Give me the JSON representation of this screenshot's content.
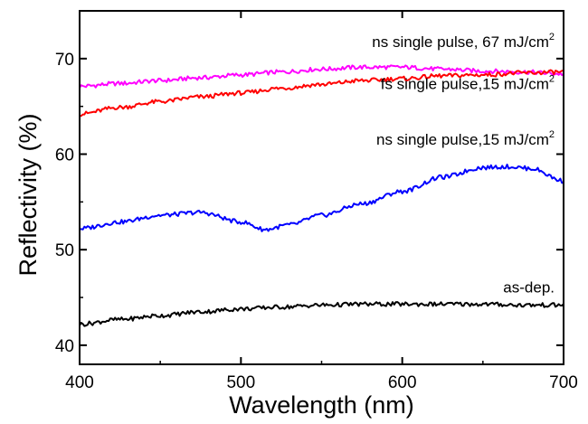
{
  "chart_data": {
    "type": "line",
    "xlabel": "Wavelength (nm)",
    "ylabel": "Reflectivity (%)",
    "xlim": [
      400,
      700
    ],
    "ylim": [
      38,
      75
    ],
    "xticks": [
      400,
      500,
      600,
      700
    ],
    "yticks": [
      40,
      50,
      60,
      70
    ],
    "grid": false,
    "series": [
      {
        "name": "ns single pulse, 67 mJ/cm2",
        "label_main": "ns single pulse, 67 mJ/cm",
        "label_sup": "2",
        "color": "#ff00ff",
        "x": [
          400,
          425,
          450,
          475,
          500,
          525,
          550,
          575,
          600,
          625,
          650,
          675,
          700
        ],
        "y": [
          67.1,
          67.4,
          67.7,
          68.0,
          68.3,
          68.6,
          68.9,
          69.1,
          69.1,
          68.9,
          68.7,
          68.6,
          68.4
        ]
      },
      {
        "name": "fs single pulse,15 mJ/cm2",
        "label_main": "fs single pulse,15 mJ/cm",
        "label_sup": "2",
        "color": "#ff0000",
        "x": [
          400,
          425,
          450,
          475,
          500,
          525,
          550,
          575,
          600,
          625,
          650,
          675,
          700
        ],
        "y": [
          64.2,
          64.9,
          65.5,
          66.0,
          66.4,
          66.9,
          67.3,
          67.7,
          67.9,
          68.2,
          68.3,
          68.5,
          68.6
        ]
      },
      {
        "name": "ns single pulse,15 mJ/cm2",
        "label_main": "ns single pulse,15 mJ/cm",
        "label_sup": "2",
        "color": "#0000ff",
        "x": [
          400,
          425,
          450,
          475,
          500,
          515,
          530,
          550,
          575,
          600,
          625,
          650,
          665,
          680,
          700
        ],
        "y": [
          52.2,
          52.9,
          53.6,
          53.9,
          52.9,
          52.1,
          52.6,
          53.6,
          54.8,
          56.1,
          57.6,
          58.6,
          58.7,
          58.5,
          57.2
        ]
      },
      {
        "name": "as-dep.",
        "label_main": "as-dep.",
        "label_sup": "",
        "color": "#000000",
        "x": [
          400,
          425,
          450,
          475,
          500,
          525,
          550,
          575,
          600,
          625,
          650,
          675,
          700
        ],
        "y": [
          42.2,
          42.7,
          43.1,
          43.5,
          43.8,
          44.0,
          44.2,
          44.3,
          44.3,
          44.3,
          44.3,
          44.2,
          44.2
        ]
      }
    ]
  }
}
